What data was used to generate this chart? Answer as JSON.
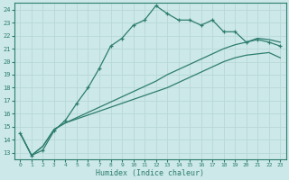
{
  "xlabel": "Humidex (Indice chaleur)",
  "background_color": "#cce8e8",
  "line_color": "#2d7d6e",
  "grid_color": "#b8d8d8",
  "xlim": [
    -0.5,
    23.5
  ],
  "ylim": [
    12.5,
    24.5
  ],
  "xticks": [
    0,
    1,
    2,
    3,
    4,
    5,
    6,
    7,
    8,
    9,
    10,
    11,
    12,
    13,
    14,
    15,
    16,
    17,
    18,
    19,
    20,
    21,
    22,
    23
  ],
  "yticks": [
    13,
    14,
    15,
    16,
    17,
    18,
    19,
    20,
    21,
    22,
    23,
    24
  ],
  "line1_x": [
    0,
    1,
    2,
    3,
    4,
    5,
    6,
    7,
    8,
    9,
    10,
    11,
    12,
    13,
    14,
    15,
    16,
    17,
    18,
    19,
    20,
    21,
    22,
    23
  ],
  "line1_y": [
    14.5,
    12.8,
    13.2,
    14.7,
    15.5,
    16.8,
    18.0,
    19.5,
    21.2,
    21.8,
    22.8,
    23.2,
    24.3,
    23.7,
    23.2,
    23.2,
    22.8,
    23.2,
    22.3,
    22.3,
    21.5,
    21.7,
    21.5,
    21.2
  ],
  "line2_x": [
    0,
    1,
    2,
    3,
    4,
    5,
    6,
    7,
    8,
    9,
    10,
    11,
    12,
    13,
    14,
    15,
    16,
    17,
    18,
    19,
    20,
    21,
    22,
    23
  ],
  "line2_y": [
    14.5,
    12.8,
    13.5,
    14.8,
    15.3,
    15.6,
    15.9,
    16.2,
    16.5,
    16.8,
    17.1,
    17.4,
    17.7,
    18.0,
    18.4,
    18.8,
    19.2,
    19.6,
    20.0,
    20.3,
    20.5,
    20.6,
    20.7,
    20.3
  ],
  "line3_x": [
    0,
    1,
    2,
    3,
    4,
    5,
    6,
    7,
    8,
    9,
    10,
    11,
    12,
    13,
    14,
    15,
    16,
    17,
    18,
    19,
    20,
    21,
    22,
    23
  ],
  "line3_y": [
    14.5,
    12.8,
    13.5,
    14.8,
    15.3,
    15.7,
    16.1,
    16.5,
    16.9,
    17.3,
    17.7,
    18.1,
    18.5,
    19.0,
    19.4,
    19.8,
    20.2,
    20.6,
    21.0,
    21.3,
    21.5,
    21.8,
    21.7,
    21.5
  ]
}
